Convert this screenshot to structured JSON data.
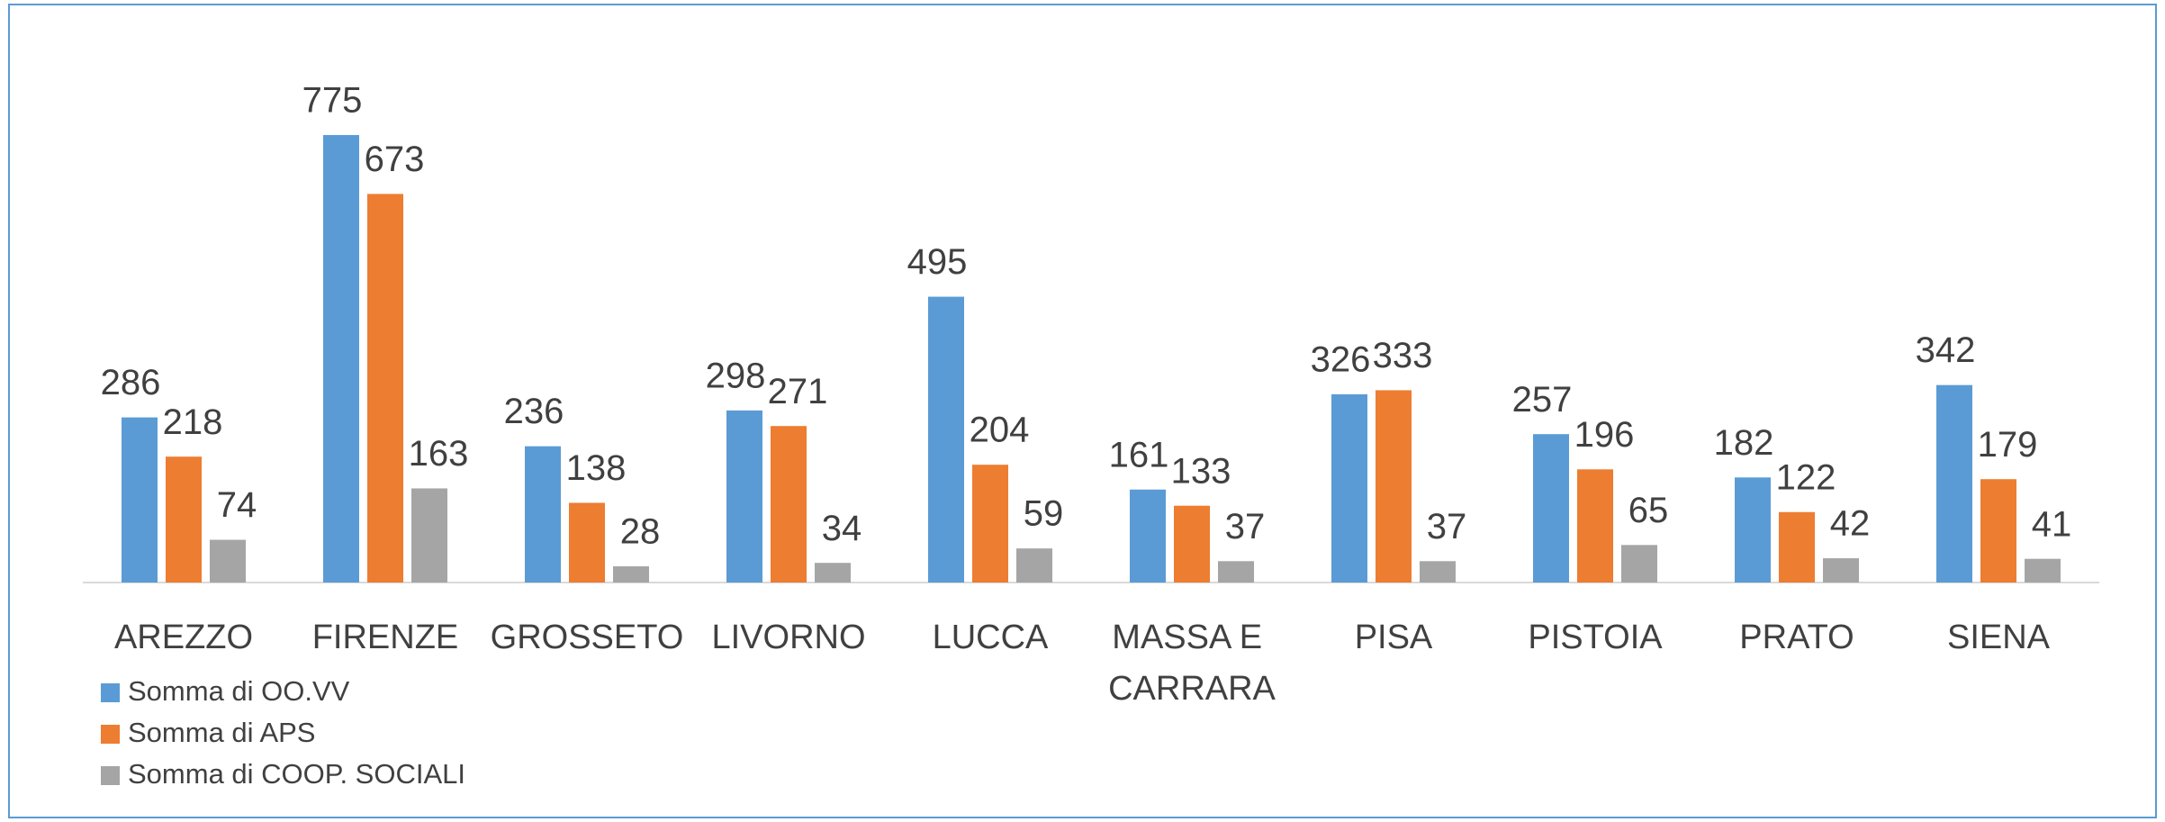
{
  "chart_data": {
    "type": "bar",
    "categories": [
      "AREZZO",
      "FIRENZE",
      "GROSSETO",
      "LIVORNO",
      "LUCCA",
      "MASSA E CARRARA",
      "PISA",
      "PISTOIA",
      "PRATO",
      "SIENA"
    ],
    "series": [
      {
        "name": "Somma di OO.VV",
        "color": "#5b9bd5",
        "values": [
          286,
          775,
          236,
          298,
          495,
          161,
          326,
          257,
          182,
          342
        ]
      },
      {
        "name": "Somma di APS",
        "color": "#ed7d31",
        "values": [
          218,
          673,
          138,
          271,
          204,
          133,
          333,
          196,
          122,
          179
        ]
      },
      {
        "name": "Somma di COOP. SOCIALI",
        "color": "#a5a5a5",
        "values": [
          74,
          163,
          28,
          34,
          59,
          37,
          37,
          65,
          42,
          41
        ]
      }
    ],
    "legend": "bottom-left"
  }
}
